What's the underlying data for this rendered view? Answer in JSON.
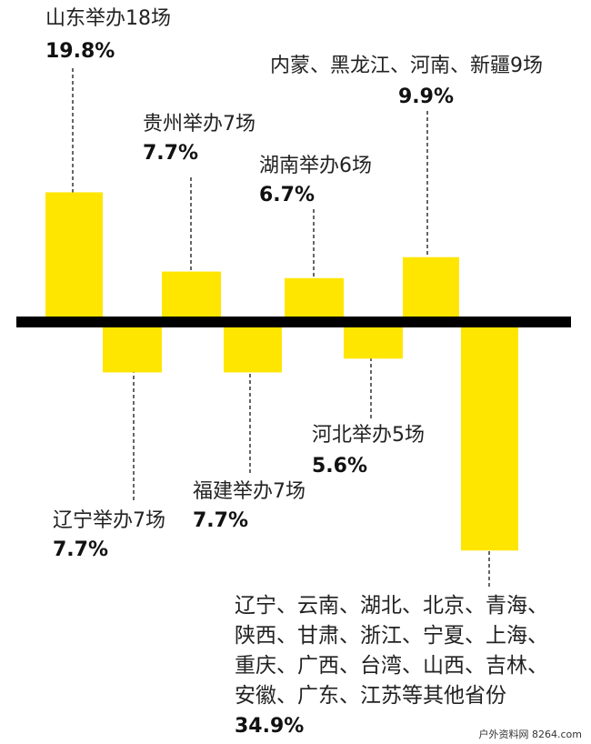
{
  "chart_data": {
    "type": "bar",
    "categories": [
      "山东举办18场",
      "辽宁举办7场",
      "贵州举办7场",
      "福建举办7场",
      "湖南举办6场",
      "河北举办5场",
      "内蒙、黑龙江、河南、新疆9场",
      "辽宁、云南、湖北、北京、青海、陕西、甘肃、浙江、宁夏、上海、重庆、广西、台湾、山西、吉林、安徽、广东、江苏等其他省份"
    ],
    "values": [
      19.8,
      7.7,
      7.7,
      7.7,
      6.7,
      5.6,
      9.9,
      34.9
    ],
    "value_labels": [
      "19.8%",
      "7.7%",
      "7.7%",
      "7.7%",
      "6.7%",
      "5.6%",
      "9.9%",
      "34.9%"
    ],
    "color": "#ffe600",
    "watermark": "户外资料网 8264.com"
  }
}
